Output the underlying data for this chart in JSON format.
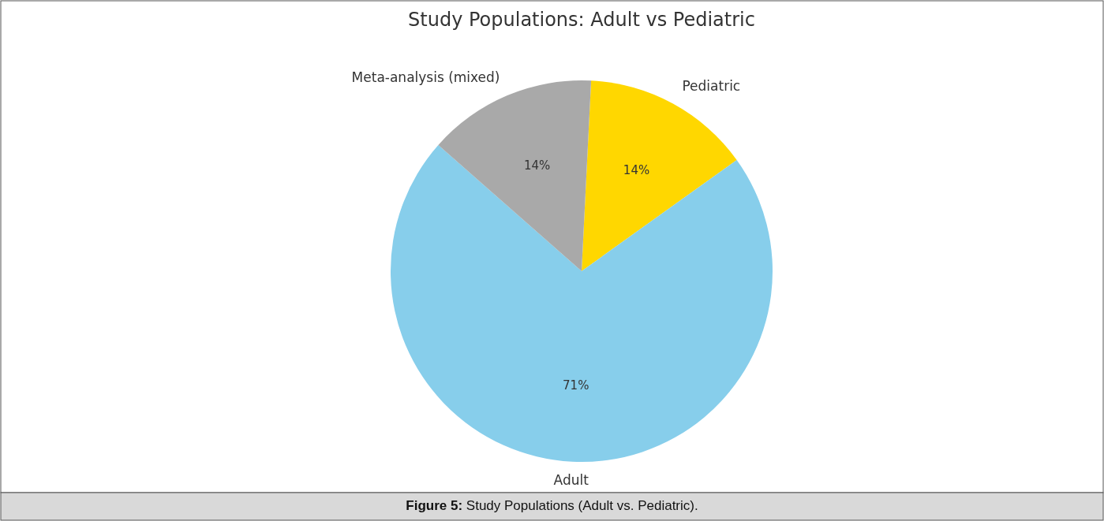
{
  "chart_data": {
    "type": "pie",
    "title": "Study Populations: Adult vs Pediatric",
    "categories": [
      "Pediatric",
      "Adult",
      "Meta-analysis (mixed)"
    ],
    "values": [
      14.3,
      71.4,
      14.3
    ],
    "colors": [
      "#ffd700",
      "#87ceeb",
      "#a9a9a9"
    ],
    "value_labels": [
      "14%",
      "71%",
      "14%"
    ],
    "annotations": [
      "Figure 5: Study Populations (Adult vs. Pediatric)."
    ]
  }
}
